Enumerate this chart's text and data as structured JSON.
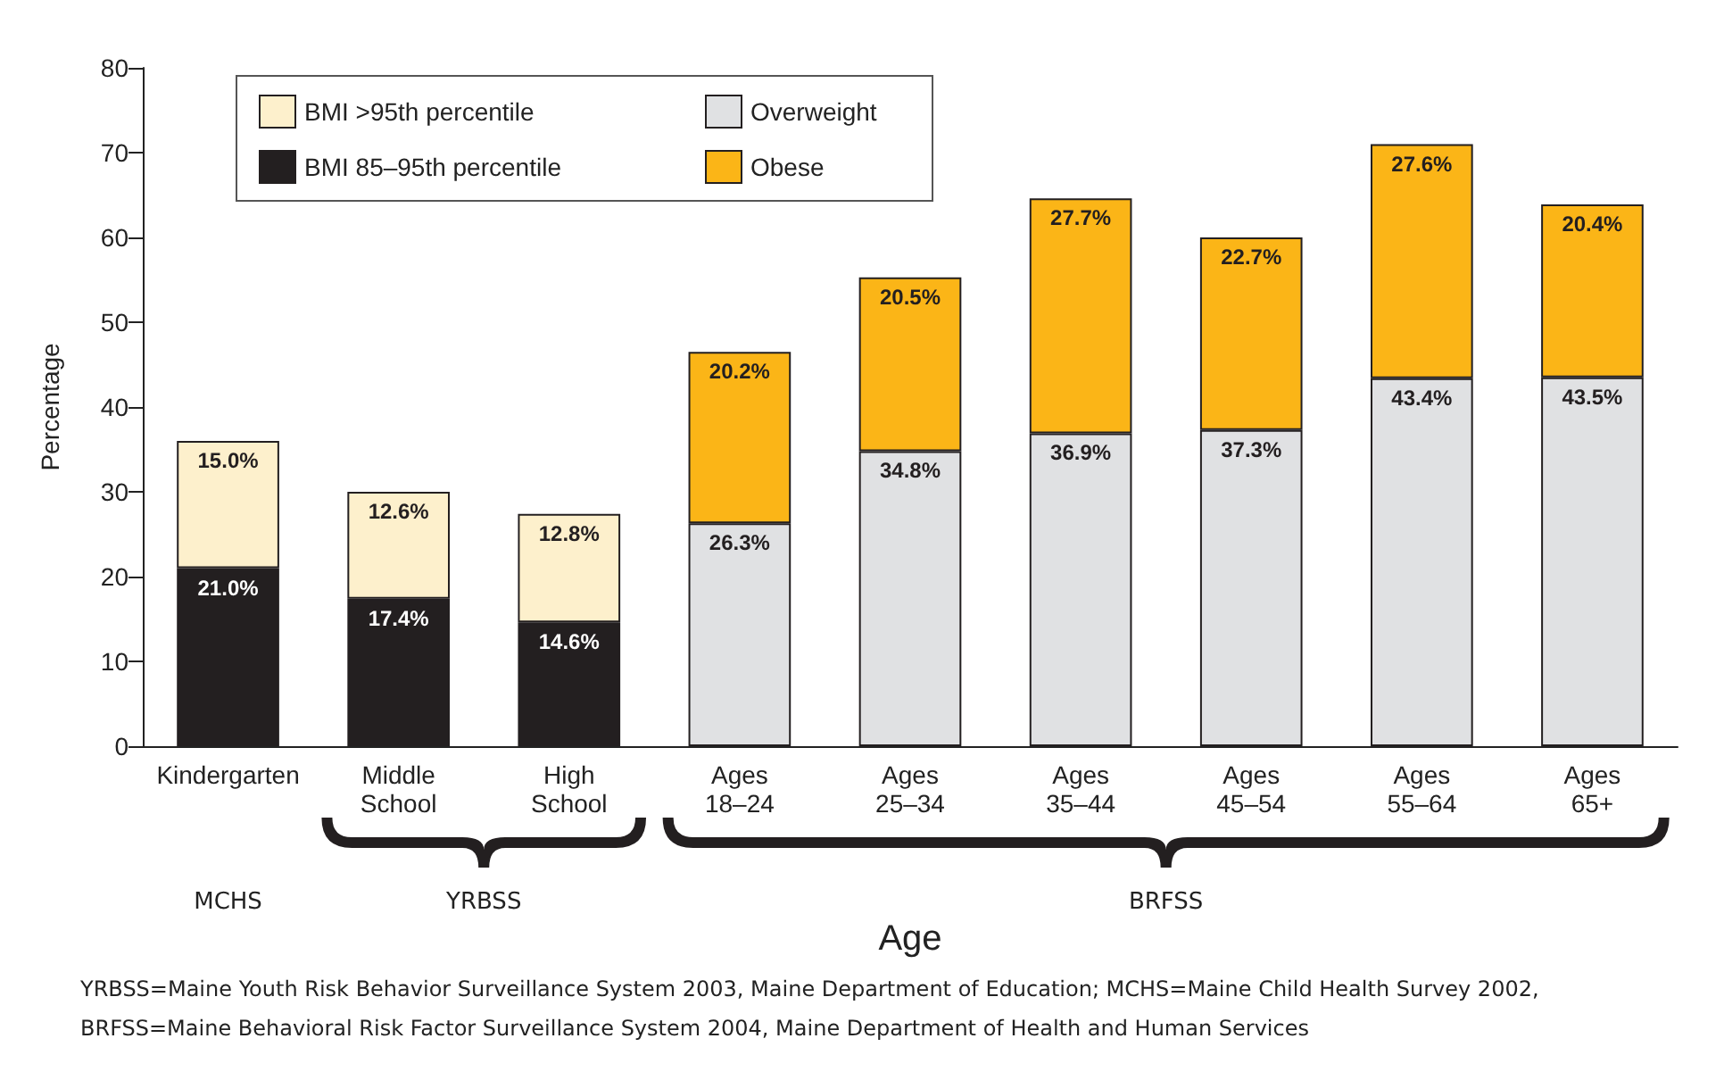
{
  "chart_data": {
    "type": "bar",
    "stacked": true,
    "xlabel": "Age",
    "ylabel": "Percentage",
    "categories": [
      "Kindergarten",
      "Middle School",
      "High School",
      "Ages 18–24",
      "Ages 25–34",
      "Ages 35–44",
      "Ages 45–54",
      "Ages 55–64",
      "Ages 65+"
    ],
    "series": [
      {
        "name": "BMI 85–95th percentile",
        "color": "#231f20",
        "values": [
          21.0,
          17.4,
          14.6,
          null,
          null,
          null,
          null,
          null,
          null
        ],
        "value_labels": [
          "21.0%",
          "17.4%",
          "14.6%",
          null,
          null,
          null,
          null,
          null,
          null
        ]
      },
      {
        "name": "BMI >95th percentile",
        "color": "#fdf0cc",
        "values": [
          15.0,
          12.6,
          12.8,
          null,
          null,
          null,
          null,
          null,
          null
        ],
        "value_labels": [
          "15.0%",
          "12.6%",
          "12.8%",
          null,
          null,
          null,
          null,
          null,
          null
        ]
      },
      {
        "name": "Overweight",
        "color": "#e0e1e3",
        "values": [
          null,
          null,
          null,
          26.3,
          34.8,
          36.9,
          37.3,
          43.4,
          43.5
        ],
        "value_labels": [
          null,
          null,
          null,
          "26.3%",
          "34.8%",
          "36.9%",
          "37.3%",
          "43.4%",
          "43.5%"
        ]
      },
      {
        "name": "Obese",
        "color": "#fbb517",
        "values": [
          null,
          null,
          null,
          20.2,
          20.5,
          27.7,
          22.7,
          27.6,
          20.4
        ],
        "value_labels": [
          null,
          null,
          null,
          "20.2%",
          "20.5%",
          "27.7%",
          "22.7%",
          "27.6%",
          "20.4%"
        ]
      }
    ],
    "ylim": [
      0,
      80
    ],
    "yticks": [
      0,
      10,
      20,
      30,
      40,
      50,
      60,
      70,
      80
    ],
    "grid": false,
    "legend": "top left",
    "annotations": [
      "MCHS",
      "YRBSS",
      "BRFSS",
      "YRBSS=Maine Youth Risk Behavior Surveillance System 2003, Maine Department of Education; MCHS=Maine Child Health Survey 2002,  BRFSS=Maine Behavioral Risk Factor Surveillance System 2004, Maine Department of Health and Human Services"
    ]
  }
}
